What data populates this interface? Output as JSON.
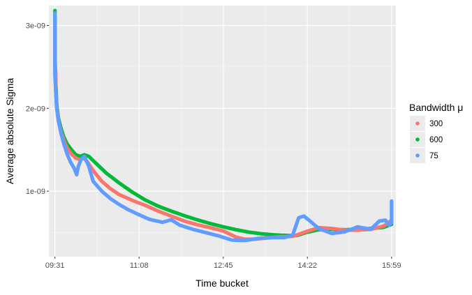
{
  "chart_data": {
    "type": "scatter",
    "title": "",
    "xlabel": "Time bucket",
    "ylabel": "Average absolute Sigma",
    "x_unit": "time of day (HH:MM)",
    "xlim": [
      "09:24",
      "16:04"
    ],
    "ylim": [
      2.1e-10,
      3.24e-09
    ],
    "x_ticks": [
      {
        "value": "09:31",
        "label": "09:31"
      },
      {
        "value": "11:08",
        "label": "11:08"
      },
      {
        "value": "12:45",
        "label": "12:45"
      },
      {
        "value": "14:22",
        "label": "14:22"
      },
      {
        "value": "15:59",
        "label": "15:59"
      }
    ],
    "y_ticks": [
      {
        "value": 1e-09,
        "label": "1e-09"
      },
      {
        "value": 2e-09,
        "label": "2e-09"
      },
      {
        "value": 3e-09,
        "label": "3e-09"
      }
    ],
    "grid": true,
    "panel_background": "#ebebeb",
    "legend": {
      "title": "Bandwidth μ",
      "position": "right",
      "entries": [
        {
          "label": "300",
          "color": "#f8766d"
        },
        {
          "label": "600",
          "color": "#00ba38"
        },
        {
          "label": "75",
          "color": "#619cff"
        }
      ]
    },
    "series": [
      {
        "name": "600",
        "color": "#00ba38",
        "points": [
          [
            "09:31",
            3.18e-09
          ],
          [
            "09:31",
            2.95e-09
          ],
          [
            "09:31",
            2.7e-09
          ],
          [
            "09:31",
            2.5e-09
          ],
          [
            "09:32",
            2.3e-09
          ],
          [
            "09:33",
            2.05e-09
          ],
          [
            "09:35",
            1.88e-09
          ],
          [
            "09:38",
            1.76e-09
          ],
          [
            "09:41",
            1.66e-09
          ],
          [
            "09:45",
            1.57e-09
          ],
          [
            "09:50",
            1.5e-09
          ],
          [
            "09:55",
            1.44e-09
          ],
          [
            "10:00",
            1.42e-09
          ],
          [
            "10:05",
            1.44e-09
          ],
          [
            "10:10",
            1.42e-09
          ],
          [
            "10:20",
            1.32e-09
          ],
          [
            "10:30",
            1.22e-09
          ],
          [
            "10:45",
            1.1e-09
          ],
          [
            "11:00",
            9.9e-10
          ],
          [
            "11:15",
            8.95e-10
          ],
          [
            "11:30",
            8.2e-10
          ],
          [
            "11:45",
            7.6e-10
          ],
          [
            "12:00",
            7.05e-10
          ],
          [
            "12:15",
            6.55e-10
          ],
          [
            "12:30",
            6.1e-10
          ],
          [
            "12:45",
            5.7e-10
          ],
          [
            "13:00",
            5.35e-10
          ],
          [
            "13:15",
            5.05e-10
          ],
          [
            "13:30",
            4.85e-10
          ],
          [
            "13:45",
            4.72e-10
          ],
          [
            "14:00",
            4.65e-10
          ],
          [
            "14:10",
            4.65e-10
          ],
          [
            "14:20",
            5e-10
          ],
          [
            "14:35",
            5.35e-10
          ],
          [
            "14:50",
            5.4e-10
          ],
          [
            "15:05",
            5.35e-10
          ],
          [
            "15:20",
            5.4e-10
          ],
          [
            "15:35",
            5.5e-10
          ],
          [
            "15:50",
            5.65e-10
          ],
          [
            "15:59",
            6e-10
          ]
        ]
      },
      {
        "name": "300",
        "color": "#f8766d",
        "points": [
          [
            "09:31",
            2.85e-09
          ],
          [
            "09:31",
            2.6e-09
          ],
          [
            "09:32",
            2.4e-09
          ],
          [
            "09:32",
            2.2e-09
          ],
          [
            "09:33",
            2.02e-09
          ],
          [
            "09:35",
            1.85e-09
          ],
          [
            "09:38",
            1.72e-09
          ],
          [
            "09:41",
            1.62e-09
          ],
          [
            "09:45",
            1.52e-09
          ],
          [
            "09:50",
            1.45e-09
          ],
          [
            "09:55",
            1.4e-09
          ],
          [
            "10:00",
            1.38e-09
          ],
          [
            "10:04",
            1.4e-09
          ],
          [
            "10:08",
            1.36e-09
          ],
          [
            "10:15",
            1.25e-09
          ],
          [
            "10:25",
            1.12e-09
          ],
          [
            "10:35",
            1.03e-09
          ],
          [
            "10:45",
            9.6e-10
          ],
          [
            "11:00",
            8.9e-10
          ],
          [
            "11:15",
            8.3e-10
          ],
          [
            "11:30",
            7.6e-10
          ],
          [
            "11:45",
            7e-10
          ],
          [
            "12:00",
            6.4e-10
          ],
          [
            "12:15",
            5.95e-10
          ],
          [
            "12:30",
            5.6e-10
          ],
          [
            "12:45",
            5.2e-10
          ],
          [
            "13:00",
            4.45e-10
          ],
          [
            "13:10",
            4.2e-10
          ],
          [
            "13:20",
            4.2e-10
          ],
          [
            "13:35",
            4.35e-10
          ],
          [
            "13:50",
            4.5e-10
          ],
          [
            "14:05",
            4.55e-10
          ],
          [
            "14:20",
            5.1e-10
          ],
          [
            "14:35",
            5.6e-10
          ],
          [
            "14:50",
            5.5e-10
          ],
          [
            "15:05",
            5.3e-10
          ],
          [
            "15:20",
            5.3e-10
          ],
          [
            "15:35",
            5.4e-10
          ],
          [
            "15:50",
            5.8e-10
          ],
          [
            "15:59",
            6.5e-10
          ]
        ]
      },
      {
        "name": "75",
        "color": "#619cff",
        "points": [
          [
            "09:31",
            3.15e-09
          ],
          [
            "09:31",
            3e-09
          ],
          [
            "09:31",
            2.8e-09
          ],
          [
            "09:31",
            2.6e-09
          ],
          [
            "09:31",
            2.4e-09
          ],
          [
            "09:32",
            2.2e-09
          ],
          [
            "09:33",
            2e-09
          ],
          [
            "09:35",
            1.85e-09
          ],
          [
            "09:38",
            1.7e-09
          ],
          [
            "09:41",
            1.58e-09
          ],
          [
            "09:45",
            1.45e-09
          ],
          [
            "09:49",
            1.35e-09
          ],
          [
            "09:53",
            1.28e-09
          ],
          [
            "09:56",
            1.2e-09
          ],
          [
            "09:58",
            1.3e-09
          ],
          [
            "10:01",
            1.38e-09
          ],
          [
            "10:05",
            1.42e-09
          ],
          [
            "10:10",
            1.3e-09
          ],
          [
            "10:15",
            1.12e-09
          ],
          [
            "10:25",
            1e-09
          ],
          [
            "10:35",
            9.1e-10
          ],
          [
            "10:45",
            8.4e-10
          ],
          [
            "10:55",
            7.8e-10
          ],
          [
            "11:05",
            7.3e-10
          ],
          [
            "11:20",
            6.6e-10
          ],
          [
            "11:35",
            6.25e-10
          ],
          [
            "11:45",
            6.55e-10
          ],
          [
            "11:55",
            5.9e-10
          ],
          [
            "12:10",
            5.4e-10
          ],
          [
            "12:25",
            5e-10
          ],
          [
            "12:40",
            4.6e-10
          ],
          [
            "12:55",
            4.1e-10
          ],
          [
            "13:10",
            4.05e-10
          ],
          [
            "13:25",
            4.3e-10
          ],
          [
            "13:40",
            4.4e-10
          ],
          [
            "13:55",
            4.4e-10
          ],
          [
            "14:05",
            4.7e-10
          ],
          [
            "14:12",
            6.8e-10
          ],
          [
            "14:18",
            7e-10
          ],
          [
            "14:25",
            6.4e-10
          ],
          [
            "14:35",
            5.5e-10
          ],
          [
            "14:50",
            4.9e-10
          ],
          [
            "15:05",
            5.1e-10
          ],
          [
            "15:20",
            5.7e-10
          ],
          [
            "15:35",
            5.4e-10
          ],
          [
            "15:45",
            6.4e-10
          ],
          [
            "15:52",
            6.5e-10
          ],
          [
            "15:56",
            5.9e-10
          ],
          [
            "15:59",
            6.2e-10
          ],
          [
            "15:59",
            7.6e-10
          ],
          [
            "15:59",
            8.8e-10
          ]
        ]
      }
    ]
  }
}
